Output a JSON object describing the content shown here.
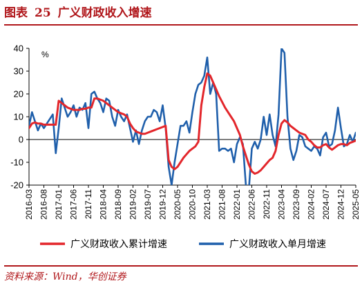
{
  "figure": {
    "label": "图表",
    "number": "25",
    "title": "广义财政收入增速",
    "source": "资料来源：Wind，华创证券"
  },
  "colors": {
    "accent": "#b0161a",
    "series_cumulative": "#e3262b",
    "series_monthly": "#1f5fab"
  },
  "chart_data": {
    "type": "line",
    "unit_label": "%",
    "ylim": [
      -20,
      40
    ],
    "yticks": [
      -20,
      -10,
      0,
      10,
      20,
      30,
      40
    ],
    "x_start": "2016-03",
    "x_end": "2025-05",
    "x_tick_labels": [
      "2016-03",
      "2016-08",
      "2017-01",
      "2017-06",
      "2017-11",
      "2018-04",
      "2018-09",
      "2019-02",
      "2019-07",
      "2019-12",
      "2020-05",
      "2020-10",
      "2021-03",
      "2021-08",
      "2022-01",
      "2022-06",
      "2022-11",
      "2023-04",
      "2023-09",
      "2024-02",
      "2024-07",
      "2024-12",
      "2025-05"
    ],
    "grid": false,
    "legend_position": "bottom",
    "series": [
      {
        "name": "广义财政收入累计增速",
        "color": "#e3262b",
        "points": [
          [
            "2016-03",
            5
          ],
          [
            "2016-04",
            7
          ],
          [
            "2016-05",
            7.5
          ],
          [
            "2016-06",
            7
          ],
          [
            "2016-07",
            7
          ],
          [
            "2016-08",
            6.5
          ],
          [
            "2016-09",
            6.5
          ],
          [
            "2016-10",
            6.5
          ],
          [
            "2016-11",
            6.5
          ],
          [
            "2016-12",
            6.5
          ],
          [
            "2017-01",
            17
          ],
          [
            "2017-02",
            16
          ],
          [
            "2017-03",
            15
          ],
          [
            "2017-04",
            14
          ],
          [
            "2017-05",
            13.5
          ],
          [
            "2017-06",
            13
          ],
          [
            "2017-07",
            13
          ],
          [
            "2017-08",
            13
          ],
          [
            "2017-09",
            13.5
          ],
          [
            "2017-10",
            13.5
          ],
          [
            "2017-11",
            14
          ],
          [
            "2017-12",
            14
          ],
          [
            "2018-01",
            18
          ],
          [
            "2018-02",
            18
          ],
          [
            "2018-03",
            17.5
          ],
          [
            "2018-04",
            17
          ],
          [
            "2018-05",
            16
          ],
          [
            "2018-06",
            15
          ],
          [
            "2018-07",
            14
          ],
          [
            "2018-08",
            13
          ],
          [
            "2018-09",
            12
          ],
          [
            "2018-10",
            11.5
          ],
          [
            "2018-11",
            11
          ],
          [
            "2018-12",
            10
          ],
          [
            "2019-01",
            7
          ],
          [
            "2019-02",
            5
          ],
          [
            "2019-03",
            3.5
          ],
          [
            "2019-04",
            3
          ],
          [
            "2019-05",
            2.5
          ],
          [
            "2019-06",
            2.5
          ],
          [
            "2019-07",
            3
          ],
          [
            "2019-08",
            3.5
          ],
          [
            "2019-09",
            4
          ],
          [
            "2019-10",
            4.5
          ],
          [
            "2019-11",
            5
          ],
          [
            "2019-12",
            5.5
          ],
          [
            "2020-01",
            6
          ],
          [
            "2020-02",
            -9
          ],
          [
            "2020-03",
            -12
          ],
          [
            "2020-04",
            -13
          ],
          [
            "2020-05",
            -12
          ],
          [
            "2020-06",
            -10
          ],
          [
            "2020-07",
            -8
          ],
          [
            "2020-08",
            -6.5
          ],
          [
            "2020-09",
            -5
          ],
          [
            "2020-10",
            -4
          ],
          [
            "2020-11",
            -3
          ],
          [
            "2020-12",
            -1
          ],
          [
            "2021-01",
            15
          ],
          [
            "2021-02",
            23
          ],
          [
            "2021-03",
            29
          ],
          [
            "2021-04",
            28
          ],
          [
            "2021-05",
            25
          ],
          [
            "2021-06",
            22
          ],
          [
            "2021-07",
            19
          ],
          [
            "2021-08",
            16.5
          ],
          [
            "2021-09",
            14
          ],
          [
            "2021-10",
            12
          ],
          [
            "2021-11",
            10
          ],
          [
            "2021-12",
            8
          ],
          [
            "2022-01",
            5
          ],
          [
            "2022-02",
            2
          ],
          [
            "2022-03",
            -3
          ],
          [
            "2022-04",
            -7
          ],
          [
            "2022-05",
            -11
          ],
          [
            "2022-06",
            -14
          ],
          [
            "2022-07",
            -15
          ],
          [
            "2022-08",
            -14.5
          ],
          [
            "2022-09",
            -13.5
          ],
          [
            "2022-10",
            -12
          ],
          [
            "2022-11",
            -10.5
          ],
          [
            "2022-12",
            -9
          ],
          [
            "2023-01",
            -8
          ],
          [
            "2023-02",
            -5
          ],
          [
            "2023-03",
            2
          ],
          [
            "2023-04",
            7
          ],
          [
            "2023-05",
            8.5
          ],
          [
            "2023-06",
            7.5
          ],
          [
            "2023-07",
            6
          ],
          [
            "2023-08",
            5
          ],
          [
            "2023-09",
            4
          ],
          [
            "2023-10",
            3
          ],
          [
            "2023-11",
            2.5
          ],
          [
            "2023-12",
            2
          ],
          [
            "2024-01",
            0
          ],
          [
            "2024-02",
            -1
          ],
          [
            "2024-03",
            -2.5
          ],
          [
            "2024-04",
            -3.5
          ],
          [
            "2024-05",
            -3.5
          ],
          [
            "2024-06",
            -2.5
          ],
          [
            "2024-07",
            -2
          ],
          [
            "2024-08",
            -3.5
          ],
          [
            "2024-09",
            -4.5
          ],
          [
            "2024-10",
            -3.5
          ],
          [
            "2024-11",
            -2.5
          ],
          [
            "2024-12",
            -2
          ],
          [
            "2025-01",
            -2
          ],
          [
            "2025-02",
            -2.5
          ],
          [
            "2025-03",
            -1.5
          ],
          [
            "2025-04",
            -1
          ],
          [
            "2025-05",
            -0.5
          ]
        ]
      },
      {
        "name": "广义财政收入单月增速",
        "color": "#1f5fab",
        "points": [
          [
            "2016-03",
            6
          ],
          [
            "2016-04",
            12
          ],
          [
            "2016-05",
            8
          ],
          [
            "2016-06",
            4
          ],
          [
            "2016-07",
            7
          ],
          [
            "2016-08",
            5
          ],
          [
            "2016-09",
            7
          ],
          [
            "2016-10",
            9
          ],
          [
            "2016-11",
            11
          ],
          [
            "2016-12",
            -6
          ],
          [
            "2017-01",
            5
          ],
          [
            "2017-02",
            18
          ],
          [
            "2017-03",
            14
          ],
          [
            "2017-04",
            10
          ],
          [
            "2017-05",
            12
          ],
          [
            "2017-06",
            15
          ],
          [
            "2017-07",
            10
          ],
          [
            "2017-08",
            14
          ],
          [
            "2017-09",
            13
          ],
          [
            "2017-10",
            16
          ],
          [
            "2017-11",
            5
          ],
          [
            "2017-12",
            20
          ],
          [
            "2018-01",
            21
          ],
          [
            "2018-02",
            18
          ],
          [
            "2018-03",
            16
          ],
          [
            "2018-04",
            12
          ],
          [
            "2018-05",
            18
          ],
          [
            "2018-06",
            17
          ],
          [
            "2018-07",
            10
          ],
          [
            "2018-08",
            6
          ],
          [
            "2018-09",
            13
          ],
          [
            "2018-10",
            10
          ],
          [
            "2018-11",
            8
          ],
          [
            "2018-12",
            11
          ],
          [
            "2019-01",
            5
          ],
          [
            "2019-02",
            -1
          ],
          [
            "2019-03",
            4
          ],
          [
            "2019-04",
            -2
          ],
          [
            "2019-05",
            4
          ],
          [
            "2019-06",
            8
          ],
          [
            "2019-07",
            10
          ],
          [
            "2019-08",
            10
          ],
          [
            "2019-09",
            13
          ],
          [
            "2019-10",
            12
          ],
          [
            "2019-11",
            8
          ],
          [
            "2019-12",
            15
          ],
          [
            "2020-01",
            5
          ],
          [
            "2020-02",
            -12
          ],
          [
            "2020-03",
            -20
          ],
          [
            "2020-04",
            -10
          ],
          [
            "2020-05",
            -2
          ],
          [
            "2020-06",
            6
          ],
          [
            "2020-07",
            6
          ],
          [
            "2020-08",
            8
          ],
          [
            "2020-09",
            3
          ],
          [
            "2020-10",
            12
          ],
          [
            "2020-11",
            20
          ],
          [
            "2020-12",
            24
          ],
          [
            "2021-01",
            25
          ],
          [
            "2021-02",
            28
          ],
          [
            "2021-03",
            36
          ],
          [
            "2021-04",
            20
          ],
          [
            "2021-05",
            25
          ],
          [
            "2021-06",
            20
          ],
          [
            "2021-07",
            -5
          ],
          [
            "2021-08",
            -4
          ],
          [
            "2021-09",
            -4
          ],
          [
            "2021-10",
            -5
          ],
          [
            "2021-11",
            -4
          ],
          [
            "2021-12",
            -10
          ],
          [
            "2022-01",
            -2
          ],
          [
            "2022-02",
            1
          ],
          [
            "2022-03",
            -2
          ],
          [
            "2022-04",
            -20
          ],
          [
            "2022-05",
            -22
          ],
          [
            "2022-06",
            -4
          ],
          [
            "2022-07",
            -1
          ],
          [
            "2022-08",
            -4
          ],
          [
            "2022-09",
            0
          ],
          [
            "2022-10",
            10
          ],
          [
            "2022-11",
            2
          ],
          [
            "2022-12",
            11
          ],
          [
            "2023-01",
            2
          ],
          [
            "2023-02",
            -3
          ],
          [
            "2023-03",
            11
          ],
          [
            "2023-04",
            40
          ],
          [
            "2023-05",
            38
          ],
          [
            "2023-06",
            10
          ],
          [
            "2023-07",
            -4
          ],
          [
            "2023-08",
            -9
          ],
          [
            "2023-09",
            -5
          ],
          [
            "2023-10",
            2
          ],
          [
            "2023-11",
            1
          ],
          [
            "2023-12",
            -3
          ],
          [
            "2024-01",
            -4
          ],
          [
            "2024-02",
            -5
          ],
          [
            "2024-03",
            -3
          ],
          [
            "2024-04",
            -4
          ],
          [
            "2024-05",
            -7
          ],
          [
            "2024-06",
            1
          ],
          [
            "2024-07",
            3
          ],
          [
            "2024-08",
            -3
          ],
          [
            "2024-09",
            -2
          ],
          [
            "2024-10",
            4
          ],
          [
            "2024-11",
            14
          ],
          [
            "2024-12",
            5
          ],
          [
            "2025-01",
            -3
          ],
          [
            "2025-02",
            -2
          ],
          [
            "2025-03",
            2
          ],
          [
            "2025-04",
            -1
          ],
          [
            "2025-05",
            3
          ]
        ]
      }
    ]
  }
}
